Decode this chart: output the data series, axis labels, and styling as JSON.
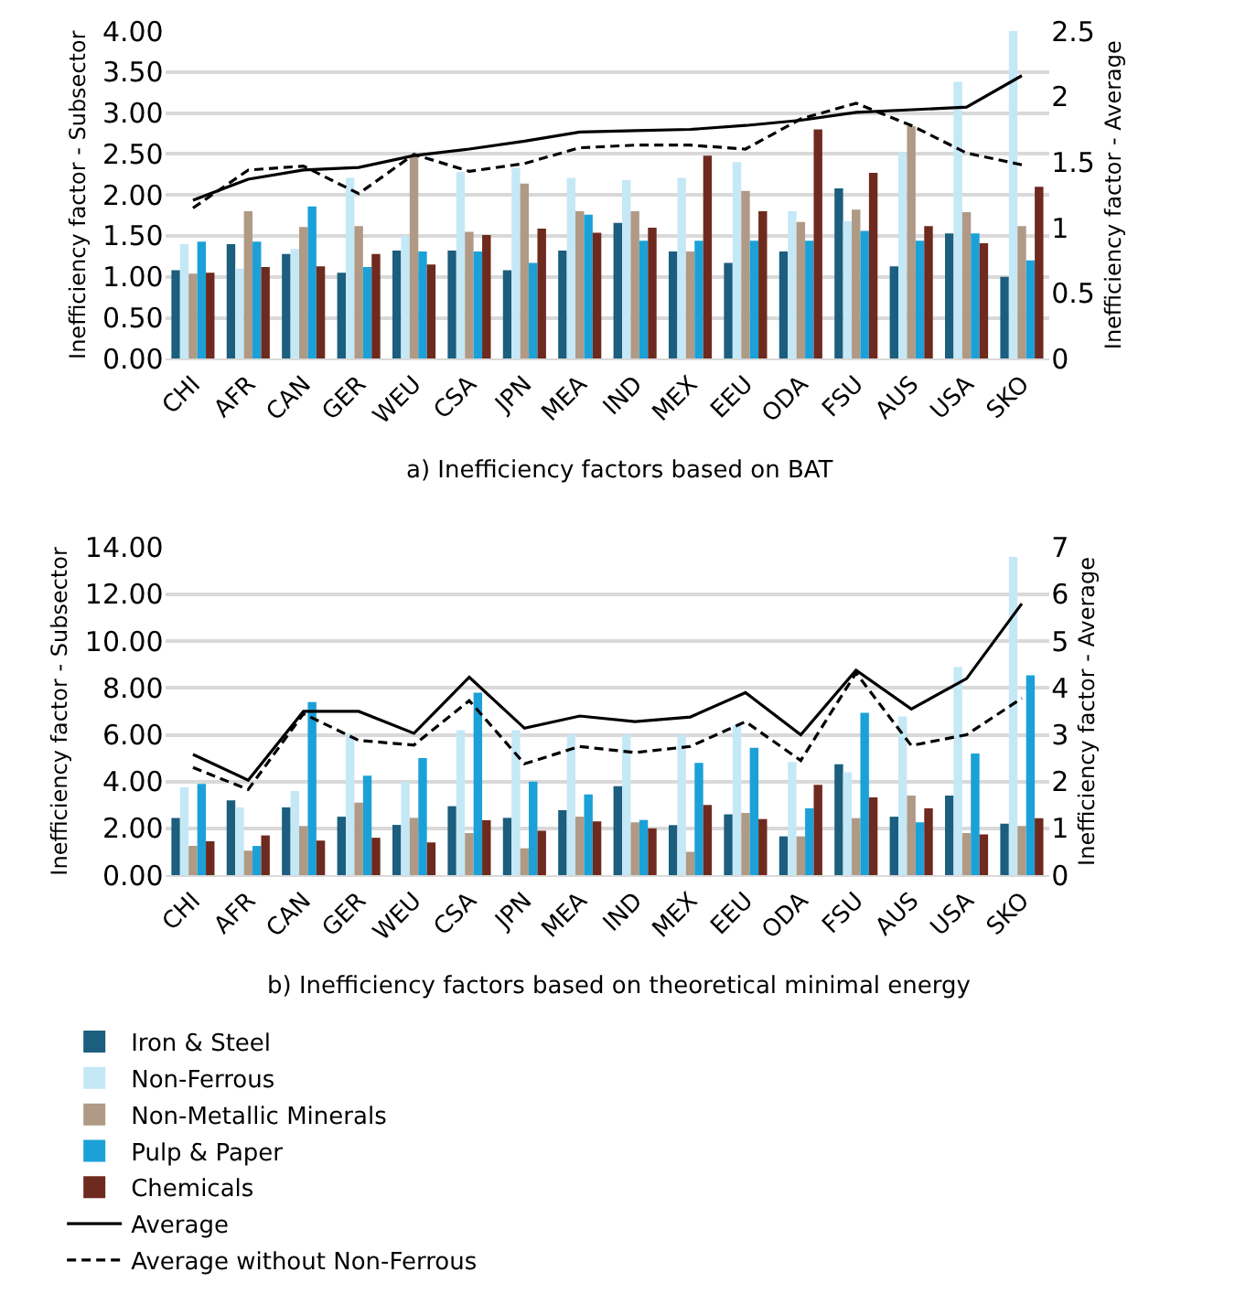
{
  "chart_data": [
    {
      "type": "bar",
      "title": "a) Inefficiency factors based on BAT",
      "ylabel": "Inefficiency factor - Subsector",
      "y2label": "Inefficiency factor - Average",
      "categories": [
        "CHI",
        "AFR",
        "CAN",
        "GER",
        "WEU",
        "CSA",
        "JPN",
        "MEA",
        "IND",
        "MEX",
        "EEU",
        "ODA",
        "FSU",
        "AUS",
        "USA",
        "SKO"
      ],
      "ylim": [
        0,
        4
      ],
      "yticks": [
        {
          "value": 0,
          "label": "0.00"
        },
        {
          "value": 0.5,
          "label": "0.50"
        },
        {
          "value": 1,
          "label": "1.00"
        },
        {
          "value": 1.5,
          "label": "1.50"
        },
        {
          "value": 2,
          "label": "2.00"
        },
        {
          "value": 2.5,
          "label": "2.50"
        },
        {
          "value": 3,
          "label": "3.00"
        },
        {
          "value": 3.5,
          "label": "3.50"
        },
        {
          "value": 4,
          "label": "4.00"
        }
      ],
      "y2lim": [
        0,
        2.5
      ],
      "y2ticks": [
        0,
        0.5,
        1,
        1.5,
        2,
        2.5
      ],
      "grid": "y",
      "legend": "bottom",
      "series": [
        {
          "name": "Iron & Steel",
          "color": "#1b5e7e",
          "values": [
            1.08,
            1.4,
            1.28,
            1.05,
            1.32,
            1.32,
            1.08,
            1.32,
            1.66,
            1.31,
            1.17,
            1.31,
            2.08,
            1.13,
            1.53,
            1.0
          ]
        },
        {
          "name": "Non-Ferrous",
          "color": "#c5e8f7",
          "values": [
            1.4,
            1.1,
            1.34,
            2.21,
            1.5,
            2.28,
            2.33,
            2.21,
            2.18,
            2.21,
            2.4,
            1.8,
            1.68,
            2.52,
            3.38,
            4.0
          ]
        },
        {
          "name": "Non-Metallic Minerals",
          "color": "#b09a85",
          "values": [
            1.04,
            1.8,
            1.61,
            1.62,
            2.48,
            1.55,
            2.14,
            1.8,
            1.8,
            1.31,
            2.05,
            1.67,
            1.82,
            2.84,
            1.79,
            1.62
          ]
        },
        {
          "name": "Pulp & Paper",
          "color": "#1ba1d8",
          "values": [
            1.43,
            1.43,
            1.86,
            1.12,
            1.31,
            1.31,
            1.17,
            1.76,
            1.44,
            1.44,
            1.44,
            1.44,
            1.56,
            1.44,
            1.53,
            1.2
          ]
        },
        {
          "name": "Chemicals",
          "color": "#6e2a1e",
          "values": [
            1.05,
            1.12,
            1.13,
            1.28,
            1.15,
            1.51,
            1.59,
            1.54,
            1.6,
            2.48,
            1.8,
            2.8,
            2.27,
            1.62,
            1.41,
            2.1
          ]
        },
        {
          "name": "Average",
          "color": "#000000",
          "type": "line",
          "axis": "y2",
          "line_style": "solid",
          "values": [
            1.21,
            1.37,
            1.44,
            1.46,
            1.55,
            1.6,
            1.66,
            1.73,
            1.74,
            1.75,
            1.78,
            1.82,
            1.88,
            1.9,
            1.92,
            2.16
          ]
        },
        {
          "name": "Average without Non-Ferrous",
          "color": "#000000",
          "type": "line",
          "axis": "y2",
          "line_style": "dashed",
          "values": [
            1.15,
            1.44,
            1.47,
            1.26,
            1.56,
            1.43,
            1.49,
            1.61,
            1.63,
            1.63,
            1.6,
            1.83,
            1.95,
            1.78,
            1.57,
            1.48
          ]
        }
      ]
    },
    {
      "type": "bar",
      "title": "b) Inefficiency factors based on theoretical minimal energy",
      "ylabel": "Inefficiency factor - Subsector",
      "y2label": "Inefficiency factor - Average",
      "categories": [
        "CHI",
        "AFR",
        "CAN",
        "GER",
        "WEU",
        "CSA",
        "JPN",
        "MEA",
        "IND",
        "MEX",
        "EEU",
        "ODA",
        "FSU",
        "AUS",
        "USA",
        "SKO"
      ],
      "ylim": [
        0,
        14
      ],
      "yticks": [
        {
          "value": 0,
          "label": "0.00"
        },
        {
          "value": 2,
          "label": "2.00"
        },
        {
          "value": 4,
          "label": "4.00"
        },
        {
          "value": 6,
          "label": "6.00"
        },
        {
          "value": 8,
          "label": "8.00"
        },
        {
          "value": 10,
          "label": "10.00"
        },
        {
          "value": 12,
          "label": "12.00"
        },
        {
          "value": 14,
          "label": "14.00"
        }
      ],
      "y2lim": [
        0,
        7
      ],
      "y2ticks": [
        0,
        1,
        2,
        3,
        4,
        5,
        6,
        7
      ],
      "grid": "y",
      "legend": "bottom",
      "series": [
        {
          "name": "Iron & Steel",
          "color": "#1b5e7e",
          "values": [
            2.45,
            3.2,
            2.9,
            2.5,
            2.15,
            2.95,
            2.45,
            2.78,
            3.8,
            2.14,
            2.6,
            1.66,
            4.74,
            2.5,
            3.4,
            2.2
          ]
        },
        {
          "name": "Non-Ferrous",
          "color": "#c5e8f7",
          "values": [
            3.75,
            2.9,
            3.6,
            6.0,
            4.0,
            6.2,
            6.2,
            6.0,
            6.0,
            6.0,
            6.4,
            4.84,
            4.4,
            6.78,
            8.9,
            13.6
          ]
        },
        {
          "name": "Non-Metallic Minerals",
          "color": "#b09a85",
          "values": [
            1.25,
            1.05,
            2.1,
            3.1,
            2.45,
            1.8,
            1.15,
            2.5,
            2.26,
            1.0,
            2.66,
            1.66,
            2.44,
            3.4,
            1.8,
            2.1
          ]
        },
        {
          "name": "Pulp & Paper",
          "color": "#1ba1d8",
          "values": [
            3.9,
            1.25,
            7.4,
            4.25,
            5.0,
            7.8,
            4.0,
            3.45,
            2.36,
            4.8,
            5.44,
            2.86,
            6.94,
            2.26,
            5.2,
            8.54
          ]
        },
        {
          "name": "Chemicals",
          "color": "#6e2a1e",
          "values": [
            1.45,
            1.7,
            1.48,
            1.6,
            1.4,
            2.35,
            1.9,
            2.3,
            2.0,
            3.0,
            2.4,
            3.86,
            3.32,
            2.86,
            1.74,
            2.44
          ]
        },
        {
          "name": "Average",
          "color": "#000000",
          "type": "line",
          "axis": "y2",
          "line_style": "solid",
          "values": [
            2.58,
            2.03,
            3.5,
            3.5,
            3.03,
            4.23,
            3.14,
            3.4,
            3.28,
            3.38,
            3.9,
            3.0,
            4.38,
            3.55,
            4.2,
            5.8
          ]
        },
        {
          "name": "Average without Non-Ferrous",
          "color": "#000000",
          "type": "line",
          "axis": "y2",
          "line_style": "dashed",
          "values": [
            2.3,
            1.83,
            3.45,
            2.88,
            2.78,
            3.73,
            2.38,
            2.75,
            2.62,
            2.75,
            3.28,
            2.45,
            4.32,
            2.77,
            3.0,
            3.78
          ]
        }
      ]
    }
  ]
}
